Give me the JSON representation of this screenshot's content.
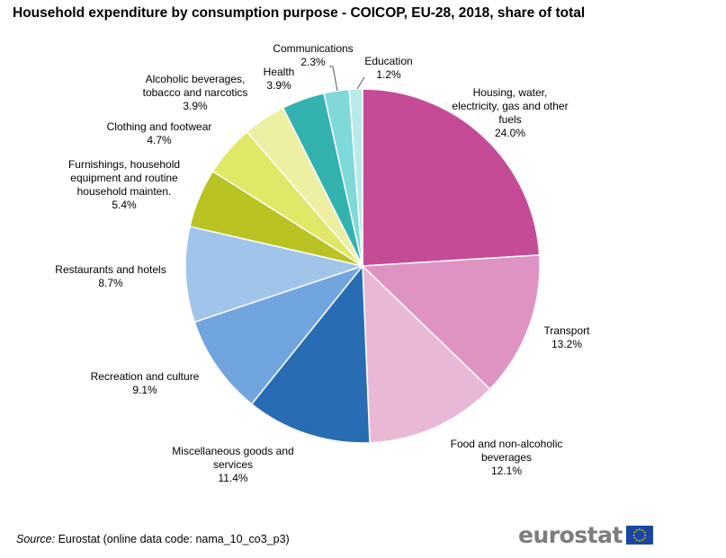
{
  "chart_data": {
    "type": "pie",
    "title": "Household expenditure by consumption purpose - COICOP, EU-28, 2018, share of total",
    "unit": "%",
    "slices": [
      {
        "name": "Housing, water, electricity, gas and other fuels",
        "label_lines": [
          "Housing, water,",
          "electricity, gas and other",
          "fuels"
        ],
        "value": 24.0,
        "value_label": "24.0%",
        "color": "#c64b96"
      },
      {
        "name": "Transport",
        "label_lines": [
          "Transport"
        ],
        "value": 13.2,
        "value_label": "13.2%",
        "color": "#df93c2"
      },
      {
        "name": "Food and non-alcoholic beverages",
        "label_lines": [
          "Food and non-alcoholic",
          "beverages"
        ],
        "value": 12.1,
        "value_label": "12.1%",
        "color": "#eab8d7"
      },
      {
        "name": "Miscellaneous goods and services",
        "label_lines": [
          "Miscellaneous goods and",
          "services"
        ],
        "value": 11.4,
        "value_label": "11.4%",
        "color": "#286cb4"
      },
      {
        "name": "Recreation and culture",
        "label_lines": [
          "Recreation and culture"
        ],
        "value": 9.1,
        "value_label": "9.1%",
        "color": "#71a5df"
      },
      {
        "name": "Restaurants and hotels",
        "label_lines": [
          "Restaurants and hotels"
        ],
        "value": 8.7,
        "value_label": "8.7%",
        "color": "#a1c4ea"
      },
      {
        "name": "Furnishings, household equipment and routine household mainten.",
        "label_lines": [
          "Furnishings, household",
          "equipment and routine",
          "household mainten."
        ],
        "value": 5.4,
        "value_label": "5.4%",
        "color": "#b9c322"
      },
      {
        "name": "Clothing and footwear",
        "label_lines": [
          "Clothing and footwear"
        ],
        "value": 4.7,
        "value_label": "4.7%",
        "color": "#e1e766"
      },
      {
        "name": "Alcoholic beverages, tobacco and narcotics",
        "label_lines": [
          "Alcoholic beverages,",
          "tobacco and narcotics"
        ],
        "value": 3.9,
        "value_label": "3.9%",
        "color": "#edf0a3"
      },
      {
        "name": "Health",
        "label_lines": [
          "Health"
        ],
        "value": 3.9,
        "value_label": "3.9%",
        "color": "#33b2b0"
      },
      {
        "name": "Communications",
        "label_lines": [
          "Communications"
        ],
        "value": 2.3,
        "value_label": "2.3%",
        "color": "#7fd9d8"
      },
      {
        "name": "Education",
        "label_lines": [
          "Education"
        ],
        "value": 1.2,
        "value_label": "1.2%",
        "color": "#b6ebea"
      }
    ]
  },
  "source": {
    "label": "Source:",
    "text": "Eurostat (online data code: nama_10_co3_p3)"
  },
  "logo": {
    "text": "eurostat",
    "flag_color": "#1a47a3",
    "star_color": "#ffd600"
  }
}
